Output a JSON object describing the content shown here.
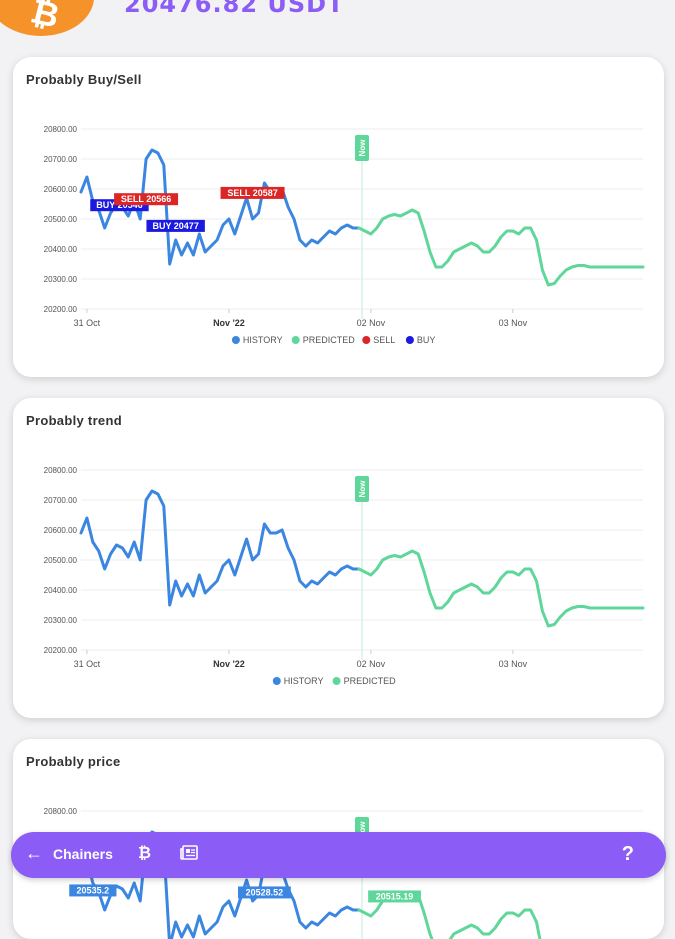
{
  "header": {
    "logo_glyph": "₿",
    "price": "20476.82 USDT"
  },
  "colors": {
    "history": "#3b86e0",
    "predicted": "#5fd69a",
    "sell": "#dc2626",
    "buy": "#1d1ae0",
    "accent": "#8b5cf6",
    "logo": "#f5922a"
  },
  "cards": [
    {
      "title": "Probably Buy/Sell"
    },
    {
      "title": "Probably trend"
    },
    {
      "title": "Probably price"
    }
  ],
  "chart_data": [
    {
      "type": "line",
      "title": "Probably Buy/Sell",
      "y_ticks": [
        "20800.00",
        "20700.00",
        "20600.00",
        "20500.00",
        "20400.00",
        "20300.00",
        "20200.00"
      ],
      "ylim": [
        20200,
        20800
      ],
      "x_ticks": [
        {
          "label": "31 Oct",
          "x": 0,
          "bold": false
        },
        {
          "label": "Nov '22",
          "x": 24,
          "bold": true
        },
        {
          "label": "02 Nov",
          "x": 48,
          "bold": false
        },
        {
          "label": "03 Nov",
          "x": 72,
          "bold": false
        }
      ],
      "xlim": [
        -1,
        94
      ],
      "now_label": "Now",
      "now_x": 46.5,
      "series": [
        {
          "name": "HISTORY",
          "x": [
            -1,
            0,
            1,
            2,
            3,
            4,
            5,
            6,
            7,
            8,
            9,
            10,
            11,
            12,
            13,
            14,
            15,
            16,
            17,
            18,
            19,
            20,
            21,
            22,
            23,
            24,
            25,
            26,
            27,
            28,
            29,
            30,
            31,
            32,
            33,
            34,
            35,
            36,
            37,
            38,
            39,
            40,
            41,
            42,
            43,
            44,
            45,
            46
          ],
          "values": [
            20590,
            20640,
            20560,
            20530,
            20470,
            20520,
            20550,
            20540,
            20510,
            20560,
            20500,
            20700,
            20730,
            20720,
            20680,
            20350,
            20430,
            20380,
            20420,
            20380,
            20450,
            20390,
            20410,
            20430,
            20480,
            20500,
            20450,
            20510,
            20570,
            20500,
            20520,
            20620,
            20590,
            20590,
            20600,
            20540,
            20500,
            20430,
            20410,
            20430,
            20420,
            20440,
            20460,
            20450,
            20470,
            20480,
            20470,
            20470
          ]
        },
        {
          "name": "PREDICTED",
          "x": [
            46,
            47,
            48,
            49,
            50,
            51,
            52,
            53,
            54,
            55,
            56,
            57,
            58,
            59,
            60,
            61,
            62,
            63,
            64,
            65,
            66,
            67,
            68,
            69,
            70,
            71,
            72,
            73,
            74,
            75,
            76,
            77,
            78,
            79,
            80,
            81,
            82,
            83,
            84,
            85,
            86,
            87,
            88,
            89,
            90,
            91,
            92,
            93,
            94
          ],
          "values": [
            20470,
            20460,
            20450,
            20470,
            20500,
            20510,
            20515,
            20510,
            20520,
            20530,
            20520,
            20460,
            20390,
            20340,
            20340,
            20360,
            20390,
            20400,
            20410,
            20420,
            20410,
            20390,
            20390,
            20410,
            20440,
            20460,
            20460,
            20450,
            20470,
            20470,
            20430,
            20330,
            20280,
            20285,
            20310,
            20330,
            20340,
            20345,
            20345,
            20340,
            20340,
            20340,
            20340,
            20340,
            20340,
            20340,
            20340,
            20340,
            20340
          ]
        }
      ],
      "annotations": [
        {
          "text": "BUY 20546",
          "type": "buy",
          "x": 5.5,
          "y": 20546
        },
        {
          "text": "SELL 20566",
          "type": "sell",
          "x": 10,
          "y": 20566
        },
        {
          "text": "BUY 20477",
          "type": "buy",
          "x": 15,
          "y": 20477
        },
        {
          "text": "SELL 20587",
          "type": "sell",
          "x": 28,
          "y": 20587
        }
      ],
      "legend": [
        {
          "name": "HISTORY",
          "color": "#3b86e0"
        },
        {
          "name": "PREDICTED",
          "color": "#5fd69a"
        },
        {
          "name": "SELL",
          "color": "#dc2626"
        },
        {
          "name": "BUY",
          "color": "#1d1ae0"
        }
      ],
      "legend_position": "bottom"
    },
    {
      "type": "line",
      "title": "Probably trend",
      "y_ticks": [
        "20800.00",
        "20700.00",
        "20600.00",
        "20500.00",
        "20400.00",
        "20300.00",
        "20200.00"
      ],
      "ylim": [
        20200,
        20800
      ],
      "x_ticks": [
        {
          "label": "31 Oct",
          "x": 0,
          "bold": false
        },
        {
          "label": "Nov '22",
          "x": 24,
          "bold": true
        },
        {
          "label": "02 Nov",
          "x": 48,
          "bold": false
        },
        {
          "label": "03 Nov",
          "x": 72,
          "bold": false
        }
      ],
      "xlim": [
        -1,
        94
      ],
      "now_label": "Now",
      "now_x": 46.5,
      "series": [
        {
          "name": "HISTORY",
          "x": [
            -1,
            0,
            1,
            2,
            3,
            4,
            5,
            6,
            7,
            8,
            9,
            10,
            11,
            12,
            13,
            14,
            15,
            16,
            17,
            18,
            19,
            20,
            21,
            22,
            23,
            24,
            25,
            26,
            27,
            28,
            29,
            30,
            31,
            32,
            33,
            34,
            35,
            36,
            37,
            38,
            39,
            40,
            41,
            42,
            43,
            44,
            45,
            46
          ],
          "values": [
            20590,
            20640,
            20560,
            20530,
            20470,
            20520,
            20550,
            20540,
            20510,
            20560,
            20500,
            20700,
            20730,
            20720,
            20680,
            20350,
            20430,
            20380,
            20420,
            20380,
            20450,
            20390,
            20410,
            20430,
            20480,
            20500,
            20450,
            20510,
            20570,
            20500,
            20520,
            20620,
            20590,
            20590,
            20600,
            20540,
            20500,
            20430,
            20410,
            20430,
            20420,
            20440,
            20460,
            20450,
            20470,
            20480,
            20470,
            20470
          ]
        },
        {
          "name": "PREDICTED",
          "x": [
            46,
            47,
            48,
            49,
            50,
            51,
            52,
            53,
            54,
            55,
            56,
            57,
            58,
            59,
            60,
            61,
            62,
            63,
            64,
            65,
            66,
            67,
            68,
            69,
            70,
            71,
            72,
            73,
            74,
            75,
            76,
            77,
            78,
            79,
            80,
            81,
            82,
            83,
            84,
            85,
            86,
            87,
            88,
            89,
            90,
            91,
            92,
            93,
            94
          ],
          "values": [
            20470,
            20460,
            20450,
            20470,
            20500,
            20510,
            20515,
            20510,
            20520,
            20530,
            20520,
            20460,
            20390,
            20340,
            20340,
            20360,
            20390,
            20400,
            20410,
            20420,
            20410,
            20390,
            20390,
            20410,
            20440,
            20460,
            20460,
            20450,
            20470,
            20470,
            20430,
            20330,
            20280,
            20285,
            20310,
            20330,
            20340,
            20345,
            20345,
            20340,
            20340,
            20340,
            20340,
            20340,
            20340,
            20340,
            20340,
            20340,
            20340
          ]
        }
      ],
      "annotations": [],
      "legend": [
        {
          "name": "HISTORY",
          "color": "#3b86e0"
        },
        {
          "name": "PREDICTED",
          "color": "#5fd69a"
        }
      ],
      "legend_position": "bottom"
    },
    {
      "type": "line",
      "title": "Probably price",
      "y_ticks": [
        "20800.00"
      ],
      "ylim": [
        20200,
        20800
      ],
      "x_ticks": [],
      "xlim": [
        -1,
        94
      ],
      "now_label": "Now",
      "now_x": 46.5,
      "series": [
        {
          "name": "HISTORY",
          "x": [
            -1,
            0,
            1,
            2,
            3,
            4,
            5,
            6,
            7,
            8,
            9,
            10,
            11,
            12,
            13,
            14,
            15,
            16,
            17,
            18,
            19,
            20,
            21,
            22,
            23,
            24,
            25,
            26,
            27,
            28,
            29,
            30,
            31,
            32,
            33,
            34,
            35,
            36,
            37,
            38,
            39,
            40,
            41,
            42,
            43,
            44,
            45,
            46
          ],
          "values": [
            20590,
            20640,
            20560,
            20530,
            20470,
            20520,
            20550,
            20540,
            20510,
            20560,
            20500,
            20700,
            20730,
            20720,
            20680,
            20350,
            20430,
            20380,
            20420,
            20380,
            20450,
            20390,
            20410,
            20430,
            20480,
            20500,
            20450,
            20510,
            20570,
            20500,
            20520,
            20620,
            20590,
            20590,
            20600,
            20540,
            20500,
            20430,
            20410,
            20430,
            20420,
            20440,
            20460,
            20450,
            20470,
            20480,
            20470,
            20470
          ]
        },
        {
          "name": "PREDICTED",
          "x": [
            46,
            47,
            48,
            49,
            50,
            51,
            52,
            53,
            54,
            55,
            56,
            57,
            58,
            59,
            60,
            61,
            62,
            63,
            64,
            65,
            66,
            67,
            68,
            69,
            70,
            71,
            72,
            73,
            74,
            75,
            76,
            77,
            78,
            79,
            80,
            81,
            82,
            83,
            84,
            85,
            86,
            87,
            88,
            89,
            90,
            91,
            92,
            93,
            94
          ],
          "values": [
            20470,
            20460,
            20450,
            20470,
            20500,
            20510,
            20515,
            20510,
            20520,
            20530,
            20520,
            20460,
            20390,
            20340,
            20340,
            20360,
            20390,
            20400,
            20410,
            20420,
            20410,
            20390,
            20390,
            20410,
            20440,
            20460,
            20460,
            20450,
            20470,
            20470,
            20430,
            20330,
            20280,
            20285,
            20310,
            20330,
            20340,
            20345,
            20345,
            20340,
            20340,
            20340,
            20340,
            20340,
            20340,
            20340,
            20340,
            20340,
            20340
          ]
        }
      ],
      "annotations": [
        {
          "text": "20535.2",
          "type": "price",
          "x": 1,
          "y": 20535.2
        },
        {
          "text": "20528.52",
          "type": "price",
          "x": 30,
          "y": 20528.52
        },
        {
          "text": "20515.19",
          "type": "price-predicted",
          "x": 52,
          "y": 20515.19
        }
      ],
      "legend": [],
      "legend_position": "bottom"
    }
  ],
  "bottom_bar": {
    "back_glyph": "←",
    "label": "Chainers",
    "btc_glyph": "₿",
    "help_glyph": "?"
  }
}
